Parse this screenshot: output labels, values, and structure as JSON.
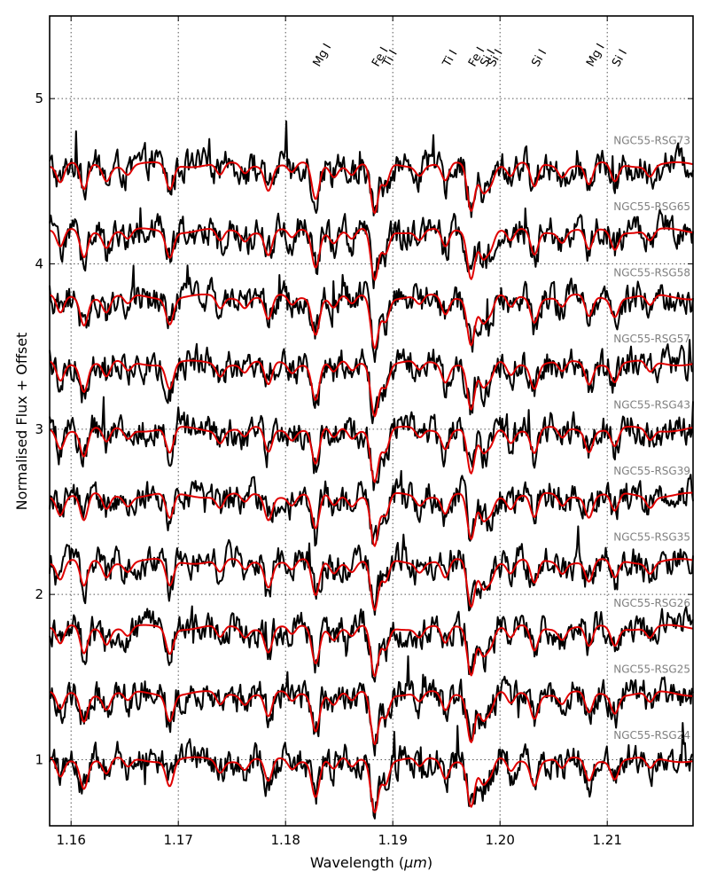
{
  "chart_data": {
    "type": "line",
    "title": "",
    "xlabel": "Wavelength (",
    "xlabel_unit": "μm",
    "xlabel_close": ")",
    "ylabel": "Normalised Flux + Offset",
    "xlim": [
      1.158,
      1.218
    ],
    "ylim": [
      0.6,
      5.5
    ],
    "grid": true,
    "x_ticks": [
      1.16,
      1.17,
      1.18,
      1.19,
      1.2,
      1.21
    ],
    "x_tick_labels": [
      "1.16",
      "1.17",
      "1.18",
      "1.19",
      "1.20",
      "1.21"
    ],
    "y_ticks": [
      1,
      2,
      3,
      4,
      5
    ],
    "y_tick_labels": [
      "1",
      "2",
      "3",
      "4",
      "5"
    ],
    "series_colors": {
      "observed": "#000000",
      "model": "#e00000"
    },
    "spectral_lines": [
      {
        "label": "Mg I",
        "x": 1.1828
      },
      {
        "label": "Fe I",
        "x": 1.1883
      },
      {
        "label": "Ti I",
        "x": 1.1893
      },
      {
        "label": "Ti I",
        "x": 1.1949
      },
      {
        "label": "Fe I",
        "x": 1.1973
      },
      {
        "label": "Si I",
        "x": 1.1984
      },
      {
        "label": "Si I",
        "x": 1.1991
      },
      {
        "label": "Si I",
        "x": 1.2032
      },
      {
        "label": "Mg I",
        "x": 1.2083
      },
      {
        "label": "Si I",
        "x": 1.2107
      }
    ],
    "stars": [
      {
        "name": "NGC55-RSG73",
        "offset": 4.6
      },
      {
        "name": "NGC55-RSG65",
        "offset": 4.2
      },
      {
        "name": "NGC55-RSG58",
        "offset": 3.8
      },
      {
        "name": "NGC55-RSG57",
        "offset": 3.4
      },
      {
        "name": "NGC55-RSG43",
        "offset": 3.0
      },
      {
        "name": "NGC55-RSG39",
        "offset": 2.6
      },
      {
        "name": "NGC55-RSG35",
        "offset": 2.2
      },
      {
        "name": "NGC55-RSG26",
        "offset": 1.8
      },
      {
        "name": "NGC55-RSG25",
        "offset": 1.4
      },
      {
        "name": "NGC55-RSG24",
        "offset": 1.0
      }
    ]
  }
}
